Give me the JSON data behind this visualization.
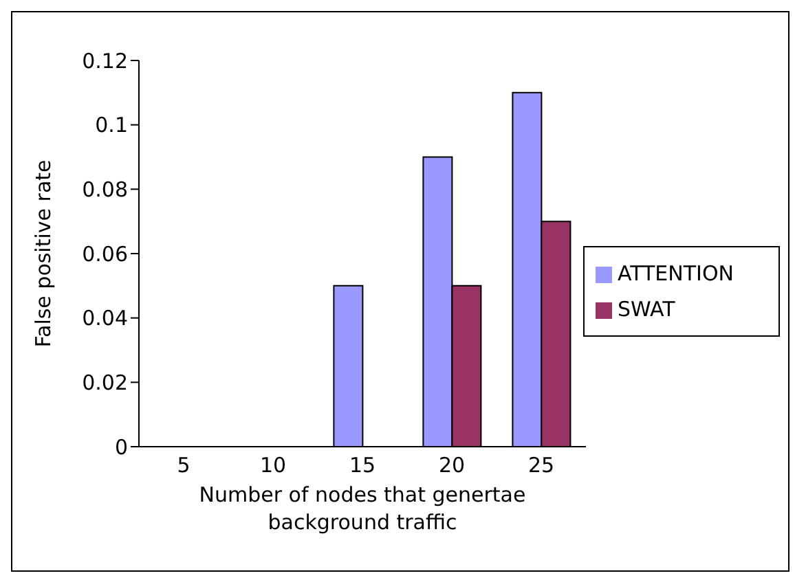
{
  "chart_data": {
    "type": "bar",
    "xlabel": "Number of nodes that genertae background traffic",
    "ylabel": "False positive rate",
    "categories": [
      "5",
      "10",
      "15",
      "20",
      "25"
    ],
    "series": [
      {
        "name": "ATTENTION",
        "color": "#9999ff",
        "values": [
          0,
          0,
          0.05,
          0.09,
          0.11
        ]
      },
      {
        "name": "SWAT",
        "color": "#993366",
        "values": [
          0,
          0,
          0,
          0.05,
          0.07
        ]
      }
    ],
    "ylim": [
      0,
      0.12
    ],
    "yticks": [
      0,
      0.02,
      0.04,
      0.06,
      0.08,
      0.1,
      0.12
    ],
    "grid": false,
    "legend": "right"
  }
}
